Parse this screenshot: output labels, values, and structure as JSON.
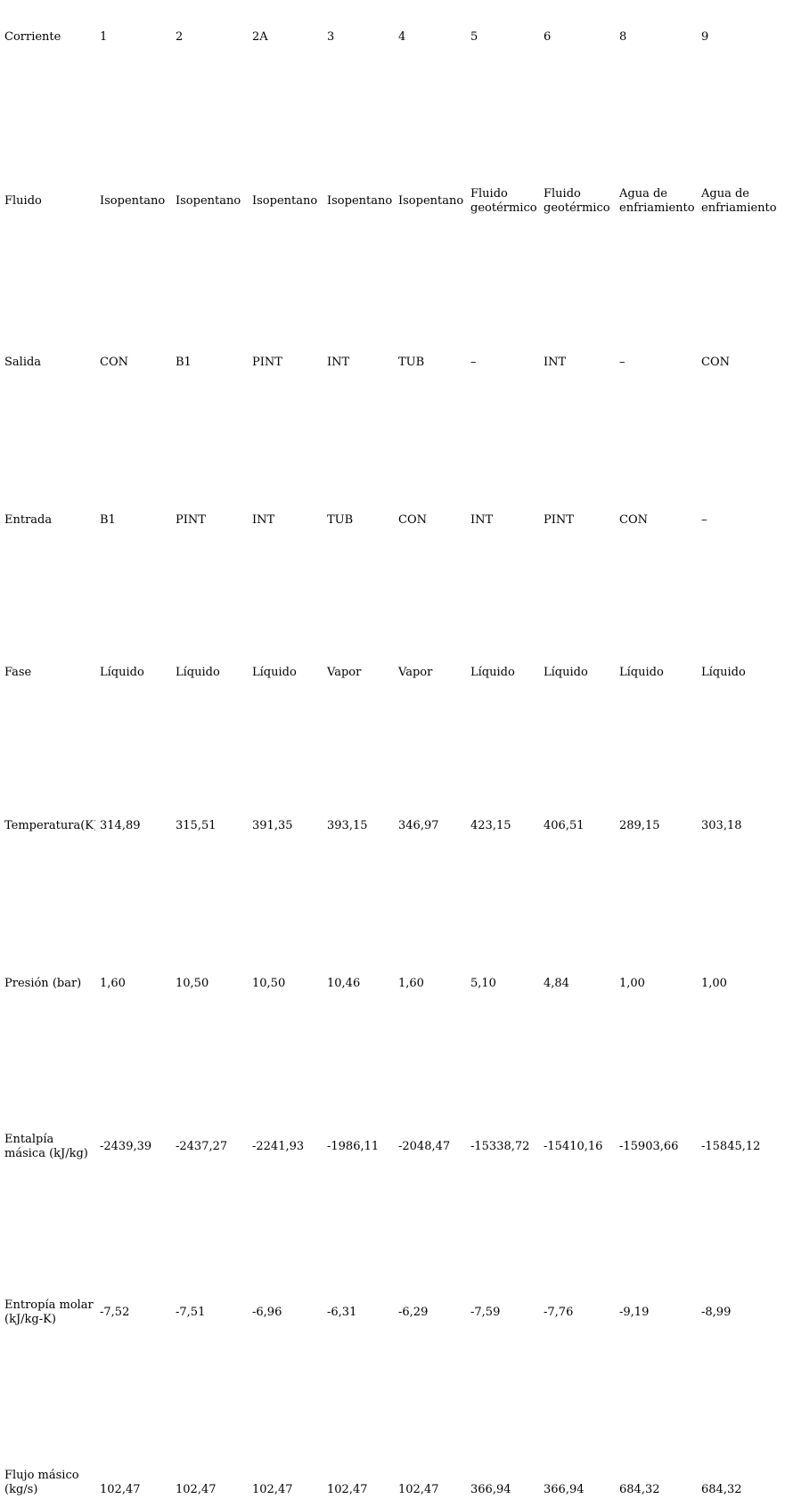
{
  "style": {
    "background": "#ffffff",
    "text_color": "#000000"
  },
  "table": {
    "description": "Tabla de propiedades de corrientes (ciclo binario geotérmico)",
    "rows": [
      {
        "label": "Corriente",
        "values": [
          "1",
          "2",
          "2A",
          "3",
          "4",
          "5",
          "6",
          "8",
          "9"
        ]
      },
      {
        "label": "Fluido",
        "values": [
          "Isopentano",
          "Isopentano",
          "Isopentano",
          "Isopentano",
          "Isopentano",
          "Fluido\ngeotérmico",
          "Fluido\ngeotérmico",
          "Agua de\nenfriamiento",
          "Agua de\nenfriamiento"
        ]
      },
      {
        "label": "Salida",
        "values": [
          "CON",
          "B1",
          "PINT",
          "INT",
          "TUB",
          "–",
          "INT",
          "–",
          "CON"
        ]
      },
      {
        "label": "Entrada",
        "values": [
          "B1",
          "PINT",
          "INT",
          "TUB",
          "CON",
          "INT",
          "PINT",
          "CON",
          "–"
        ]
      },
      {
        "label": "Fase",
        "values": [
          "Líquido",
          "Líquido",
          "Líquido",
          "Vapor",
          "Vapor",
          "Líquido",
          "Líquido",
          "Líquido",
          "Líquido"
        ]
      },
      {
        "label": "Temperatura(K)",
        "values": [
          "314,89",
          "315,51",
          "391,35",
          "393,15",
          "346,97",
          "423,15",
          "406,51",
          "289,15",
          "303,18"
        ]
      },
      {
        "label": "Presión (bar)",
        "values": [
          "1,60",
          "10,50",
          "10,50",
          "10,46",
          "1,60",
          "5,10",
          "4,84",
          "1,00",
          "1,00"
        ]
      },
      {
        "label": "Entalpía\nmásica (kJ/kg)",
        "values": [
          "-2439,39",
          "-2437,27",
          "-2241,93",
          "-1986,11",
          "-2048,47",
          "-15338,72",
          "-15410,16",
          "-15903,66",
          "-15845,12"
        ]
      },
      {
        "label": "Entropía molar\n(kJ/kg-K)",
        "values": [
          "-7,52",
          "-7,51",
          "-6,96",
          "-6,31",
          "-6,29",
          "-7,59",
          "-7,76",
          "-9,19",
          "-8,99"
        ]
      },
      {
        "label": "Flujo másico\n(kg/s)",
        "values": [
          "102,47",
          "102,47",
          "102,47",
          "102,47",
          "102,47",
          "366,94",
          "366,94",
          "684,32",
          "684,32"
        ]
      }
    ]
  }
}
